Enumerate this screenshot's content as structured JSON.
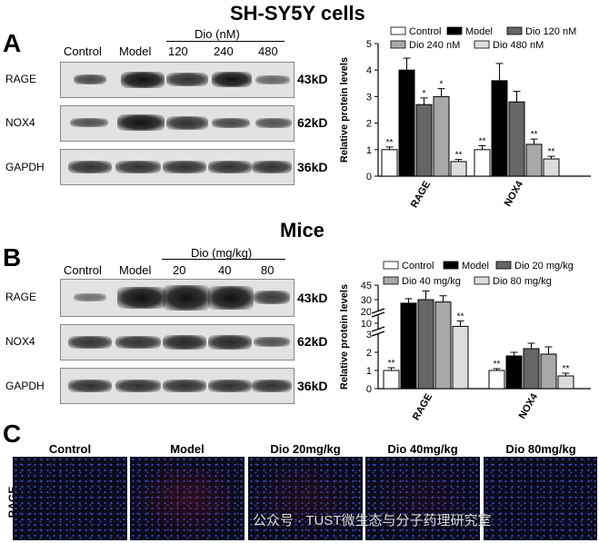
{
  "section_A": {
    "title": "SH-SY5Y cells",
    "panel_label": "A",
    "group_label": "Dio (nM)",
    "lanes": [
      "Control",
      "Model",
      "120",
      "240",
      "480"
    ],
    "rows": [
      {
        "name": "RAGE",
        "kd": "43kD"
      },
      {
        "name": "NOX4",
        "kd": "62kD"
      },
      {
        "name": "GAPDH",
        "kd": "36kD"
      }
    ]
  },
  "section_B": {
    "title": "Mice",
    "panel_label": "B",
    "group_label": "Dio (mg/kg)",
    "lanes": [
      "Control",
      "Model",
      "20",
      "40",
      "80"
    ],
    "rows": [
      {
        "name": "RAGE",
        "kd": "43kD"
      },
      {
        "name": "NOX4",
        "kd": "62kD"
      },
      {
        "name": "GAPDH",
        "kd": "36kD"
      }
    ]
  },
  "section_C": {
    "panel_label": "C",
    "row_label": "RAGE",
    "columns": [
      "Control",
      "Model",
      "Dio 20mg/kg",
      "Dio 40mg/kg",
      "Dio 80mg/kg"
    ]
  },
  "watermark": "公众号 · TUST微生态与分子药理研究室",
  "chart_data": [
    {
      "type": "bar",
      "ylabel": "Relative protein levels",
      "ylim": [
        0,
        5
      ],
      "yticks": [
        "0",
        "1",
        "2",
        "3",
        "4",
        "5"
      ],
      "categories": [
        "RAGE",
        "NOX4"
      ],
      "colors": [
        "#ffffff",
        "#000000",
        "#666666",
        "#a8a8a8",
        "#dcdcdc"
      ],
      "series": [
        {
          "name": "Control",
          "values": [
            1.0,
            1.0
          ],
          "errors": [
            0.1,
            0.15
          ],
          "sig": [
            "**",
            "**"
          ]
        },
        {
          "name": "Model",
          "values": [
            4.0,
            3.6
          ],
          "errors": [
            0.45,
            0.65
          ],
          "sig": [
            "",
            ""
          ]
        },
        {
          "name": "Dio 120 nM",
          "values": [
            2.7,
            2.8
          ],
          "errors": [
            0.25,
            0.4
          ],
          "sig": [
            "*",
            ""
          ]
        },
        {
          "name": "Dio 240 nM",
          "values": [
            3.0,
            1.2
          ],
          "errors": [
            0.3,
            0.2
          ],
          "sig": [
            "*",
            "**"
          ]
        },
        {
          "name": "Dio 480 nM",
          "values": [
            0.55,
            0.65
          ],
          "errors": [
            0.08,
            0.1
          ],
          "sig": [
            "**",
            "**"
          ]
        }
      ]
    },
    {
      "type": "bar",
      "ylabel": "Relative protein levels",
      "broken_axis": true,
      "yticks": [
        "0",
        "1",
        "2",
        "3",
        "10",
        "20",
        "30",
        "45"
      ],
      "categories": [
        "RAGE",
        "NOX4"
      ],
      "colors": [
        "#ffffff",
        "#000000",
        "#666666",
        "#a8a8a8",
        "#dcdcdc"
      ],
      "series": [
        {
          "name": "Control",
          "values": [
            1.0,
            1.0
          ],
          "errors": [
            0.15,
            0.1
          ],
          "sig": [
            "**",
            "**"
          ]
        },
        {
          "name": "Model",
          "values": [
            27,
            1.8
          ],
          "errors": [
            4,
            0.2
          ],
          "sig": [
            "",
            ""
          ]
        },
        {
          "name": "Dio 20 mg/kg",
          "values": [
            30,
            2.2
          ],
          "errors": [
            9,
            0.3
          ],
          "sig": [
            "",
            ""
          ]
        },
        {
          "name": "Dio 40 mg/kg",
          "values": [
            28,
            1.9
          ],
          "errors": [
            6,
            0.4
          ],
          "sig": [
            "",
            ""
          ]
        },
        {
          "name": "Dio 80 mg/kg",
          "values": [
            8,
            0.7
          ],
          "errors": [
            4,
            0.15
          ],
          "sig": [
            "**",
            "**"
          ]
        }
      ]
    }
  ]
}
